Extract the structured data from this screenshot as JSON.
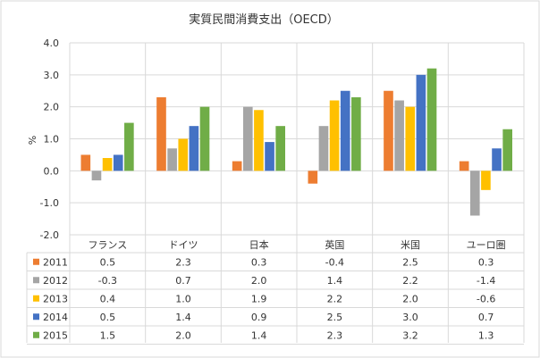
{
  "chart_data": {
    "type": "bar",
    "title": "実質民間消費支出（OECD）",
    "ylabel": "%",
    "ylim": [
      -2.0,
      4.0
    ],
    "yticks": [
      "4.0",
      "3.0",
      "2.0",
      "1.0",
      "0.0",
      "-1.0",
      "-2.0"
    ],
    "ytick_values": [
      4,
      3,
      2,
      1,
      0,
      -1,
      -2
    ],
    "categories": [
      "フランス",
      "ドイツ",
      "日本",
      "英国",
      "米国",
      "ユーロ圏"
    ],
    "series": [
      {
        "name": "2011",
        "color": "#ED7D31",
        "values": [
          0.5,
          2.3,
          0.3,
          -0.4,
          2.5,
          0.3
        ],
        "labels": [
          "0.5",
          "2.3",
          "0.3",
          "-0.4",
          "2.5",
          "0.3"
        ]
      },
      {
        "name": "2012",
        "color": "#A5A5A5",
        "values": [
          -0.3,
          0.7,
          2.0,
          1.4,
          2.2,
          -1.4
        ],
        "labels": [
          "-0.3",
          "0.7",
          "2.0",
          "1.4",
          "2.2",
          "-1.4"
        ]
      },
      {
        "name": "2013",
        "color": "#FFC000",
        "values": [
          0.4,
          1.0,
          1.9,
          2.2,
          2.0,
          -0.6
        ],
        "labels": [
          "0.4",
          "1.0",
          "1.9",
          "2.2",
          "2.0",
          "-0.6"
        ]
      },
      {
        "name": "2014",
        "color": "#4472C4",
        "values": [
          0.5,
          1.4,
          0.9,
          2.5,
          3.0,
          0.7
        ],
        "labels": [
          "0.5",
          "1.4",
          "0.9",
          "2.5",
          "3.0",
          "0.7"
        ]
      },
      {
        "name": "2015",
        "color": "#70AD47",
        "values": [
          1.5,
          2.0,
          1.4,
          2.3,
          3.2,
          1.3
        ],
        "labels": [
          "1.5",
          "2.0",
          "1.4",
          "2.3",
          "3.2",
          "1.3"
        ]
      }
    ],
    "grid": true,
    "legend": "data-table-left"
  }
}
